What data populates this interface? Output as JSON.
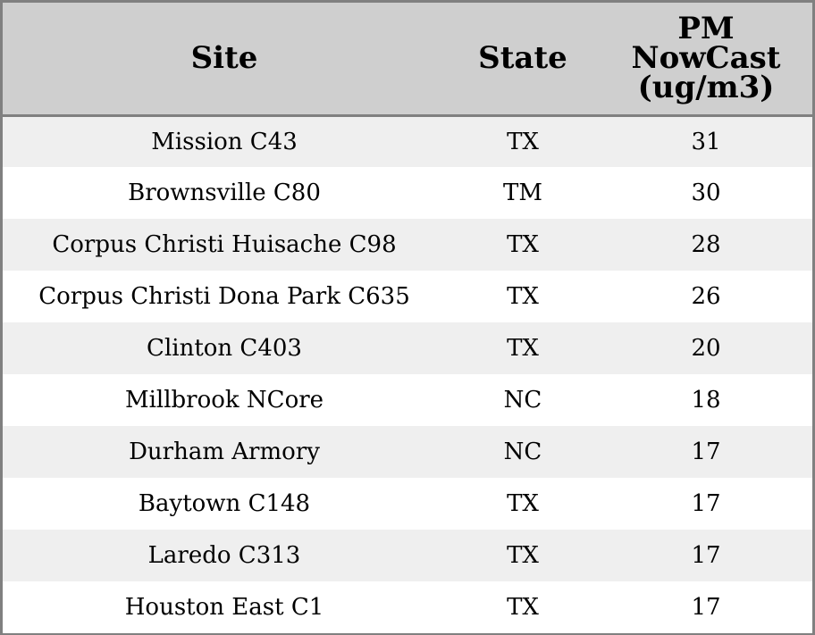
{
  "table": {
    "headers": {
      "site": "Site",
      "state": "State",
      "pm_line1": "PM",
      "pm_line2": "NowCast",
      "pm_line3": "(ug/m3)"
    },
    "rows": [
      {
        "site": "Mission C43",
        "state": "TX",
        "pm": "31"
      },
      {
        "site": "Brownsville C80",
        "state": "TM",
        "pm": "30"
      },
      {
        "site": "Corpus Christi Huisache C98",
        "state": "TX",
        "pm": "28"
      },
      {
        "site": "Corpus Christi Dona Park C635",
        "state": "TX",
        "pm": "26"
      },
      {
        "site": "Clinton C403",
        "state": "TX",
        "pm": "20"
      },
      {
        "site": "Millbrook NCore",
        "state": "NC",
        "pm": "18"
      },
      {
        "site": "Durham Armory",
        "state": "NC",
        "pm": "17"
      },
      {
        "site": "Baytown C148",
        "state": "TX",
        "pm": "17"
      },
      {
        "site": "Laredo C313",
        "state": "TX",
        "pm": "17"
      },
      {
        "site": "Houston East C1",
        "state": "TX",
        "pm": "17"
      }
    ]
  },
  "colors": {
    "header_bg": "#cfcfcf",
    "stripe_bg": "#efefef",
    "row_bg": "#ffffff",
    "border": "#808080"
  }
}
